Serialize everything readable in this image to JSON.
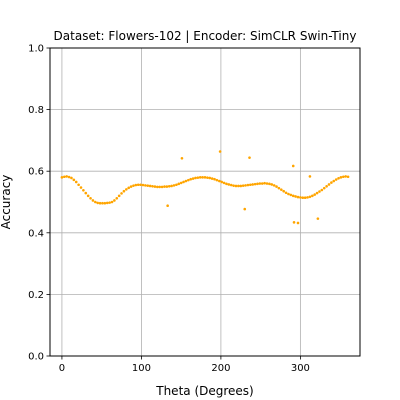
{
  "chart_data": {
    "type": "scatter",
    "title": "Dataset: Flowers-102 | Encoder: SimCLR Swin-Tiny",
    "xlabel": "Theta (Degrees)",
    "ylabel": "Accuracy",
    "xlim": [
      -15,
      375
    ],
    "ylim": [
      0.0,
      1.0
    ],
    "xticks": [
      0,
      100,
      200,
      300
    ],
    "yticks": [
      0.0,
      0.2,
      0.4,
      0.6,
      0.8,
      1.0
    ],
    "xtick_labels": [
      "0",
      "100",
      "200",
      "300"
    ],
    "ytick_labels": [
      "0.0",
      "0.2",
      "0.4",
      "0.6",
      "0.8",
      "1.0"
    ],
    "grid": true,
    "color": "#ffa500",
    "series": [
      {
        "x": [
          0,
          3,
          6,
          9,
          12,
          15,
          18,
          21,
          24,
          27,
          30,
          33,
          36,
          39,
          42,
          45,
          48,
          51,
          54,
          57,
          60,
          63,
          66,
          69,
          72,
          75,
          78,
          81,
          84,
          87,
          90,
          93,
          96,
          99,
          102,
          105,
          108,
          111,
          114,
          117,
          120,
          123,
          126,
          129,
          132,
          135,
          138,
          141,
          144,
          147,
          150,
          153,
          156,
          159,
          162,
          165,
          168,
          171,
          174,
          177,
          180,
          183,
          186,
          189,
          192,
          195,
          198,
          201,
          204,
          207,
          210,
          213,
          216,
          219,
          222,
          225,
          228,
          231,
          234,
          237,
          240,
          243,
          246,
          249,
          252,
          255,
          258,
          261,
          264,
          267,
          270,
          273,
          276,
          279,
          282,
          285,
          288,
          291,
          294,
          297,
          300,
          303,
          306,
          309,
          312,
          315,
          318,
          321,
          324,
          327,
          330,
          333,
          336,
          339,
          342,
          345,
          348,
          351,
          354,
          357,
          360
        ],
        "y": [
          0.58,
          0.582,
          0.583,
          0.581,
          0.578,
          0.572,
          0.565,
          0.556,
          0.547,
          0.538,
          0.529,
          0.52,
          0.512,
          0.505,
          0.5,
          0.497,
          0.496,
          0.496,
          0.496,
          0.497,
          0.498,
          0.5,
          0.505,
          0.512,
          0.52,
          0.528,
          0.535,
          0.541,
          0.546,
          0.55,
          0.553,
          0.555,
          0.556,
          0.556,
          0.555,
          0.554,
          0.553,
          0.552,
          0.551,
          0.55,
          0.549,
          0.549,
          0.549,
          0.55,
          0.55,
          0.551,
          0.552,
          0.554,
          0.556,
          0.559,
          0.562,
          0.565,
          0.568,
          0.571,
          0.574,
          0.576,
          0.578,
          0.579,
          0.58,
          0.58,
          0.58,
          0.579,
          0.578,
          0.576,
          0.574,
          0.571,
          0.568,
          0.565,
          0.562,
          0.559,
          0.557,
          0.555,
          0.553,
          0.552,
          0.552,
          0.552,
          0.553,
          0.554,
          0.555,
          0.556,
          0.557,
          0.558,
          0.559,
          0.56,
          0.56,
          0.561,
          0.56,
          0.559,
          0.557,
          0.554,
          0.55,
          0.545,
          0.54,
          0.535,
          0.53,
          0.526,
          0.523,
          0.52,
          0.518,
          0.516,
          0.515,
          0.514,
          0.514,
          0.515,
          0.517,
          0.52,
          0.524,
          0.529,
          0.534,
          0.539,
          0.545,
          0.551,
          0.557,
          0.563,
          0.568,
          0.573,
          0.577,
          0.58,
          0.582,
          0.583,
          0.582
        ]
      },
      {
        "x": [
          133,
          151,
          199,
          230,
          236,
          291,
          292,
          297,
          312,
          322
        ],
        "y": [
          0.488,
          0.642,
          0.664,
          0.477,
          0.644,
          0.617,
          0.434,
          0.432,
          0.583,
          0.446
        ]
      }
    ]
  }
}
